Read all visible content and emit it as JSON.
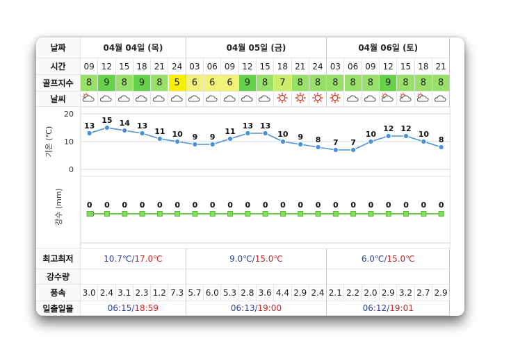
{
  "labels": {
    "date": "날짜",
    "time": "시간",
    "golf_index": "골프지수",
    "weather": "날씨",
    "temp_axis": "기온 (℃)",
    "rain_axis": "강수 (mm)",
    "low_high": "최고최저",
    "precip": "강수량",
    "wind": "풍속",
    "sun": "일출일몰"
  },
  "days": [
    {
      "label": "04월 04일 (목)",
      "low": "10.7℃",
      "high": "17.0℃",
      "sunrise": "06:15",
      "sunset": "18:59",
      "span": 6
    },
    {
      "label": "04월 05일 (금)",
      "low": "9.0℃",
      "high": "15.0℃",
      "sunrise": "06:13",
      "sunset": "19:00",
      "span": 8
    },
    {
      "label": "04월 06일 (토)",
      "low": "6.0℃",
      "high": "15.0℃",
      "sunrise": "06:12",
      "sunset": "19:01",
      "span": 7
    }
  ],
  "slash": "/",
  "hours": [
    "09",
    "12",
    "15",
    "18",
    "21",
    "24",
    "03",
    "06",
    "09",
    "12",
    "15",
    "18",
    "21",
    "24",
    "03",
    "06",
    "09",
    "12",
    "15",
    "18",
    "21"
  ],
  "golf_index": [
    "8",
    "9",
    "8",
    "9",
    "8",
    "5",
    "6",
    "6",
    "6",
    "9",
    "8",
    "7",
    "8",
    "8",
    "8",
    "8",
    "8",
    "9",
    "8",
    "8",
    "8"
  ],
  "golf_colors": {
    "9": "#66d24a",
    "8": "#99e06a",
    "7": "#cdec6a",
    "6": "#f2f27a",
    "5": "#f4f000"
  },
  "weather_icons": [
    "partly-cloudy-icon",
    "cloudy-icon",
    "cloudy-icon",
    "cloudy-icon",
    "cloudy-icon",
    "cloudy-icon",
    "cloudy-icon",
    "cloudy-icon",
    "cloudy-icon",
    "cloudy-icon",
    "cloudy-icon",
    "sunny-icon",
    "sunny-icon",
    "sunny-icon",
    "sunny-icon",
    "cloudy-icon",
    "cloudy-icon",
    "partly-cloudy-icon",
    "partly-cloudy-icon",
    "partly-cloudy-icon",
    "cloudy-icon"
  ],
  "wind": [
    "3.0",
    "2.4",
    "3.1",
    "2.3",
    "1.2",
    "7.3",
    "5.7",
    "6.0",
    "5.3",
    "2.8",
    "3.6",
    "4.4",
    "2.9",
    "2.4",
    "2.1",
    "2.2",
    "2.0",
    "2.9",
    "3.2",
    "2.7",
    "2.9"
  ],
  "chart_data": [
    {
      "type": "line",
      "ylabel": "기온 (℃)",
      "y_ticks": [
        "20",
        "10",
        "0"
      ],
      "ylim": [
        0,
        20
      ],
      "series": [
        {
          "values": [
            13,
            15,
            14,
            13,
            11,
            10,
            9,
            9,
            11,
            13,
            13,
            10,
            9,
            8,
            7,
            7,
            10,
            12,
            12,
            10,
            8
          ]
        }
      ],
      "color": "#4a90d9"
    },
    {
      "type": "line",
      "ylabel": "강수 (mm)",
      "y_ticks": [
        "0"
      ],
      "series": [
        {
          "values": [
            0,
            0,
            0,
            0,
            0,
            0,
            0,
            0,
            0,
            0,
            0,
            0,
            0,
            0,
            0,
            0,
            0,
            0,
            0,
            0,
            0
          ]
        }
      ],
      "color": "#66cc44"
    }
  ]
}
